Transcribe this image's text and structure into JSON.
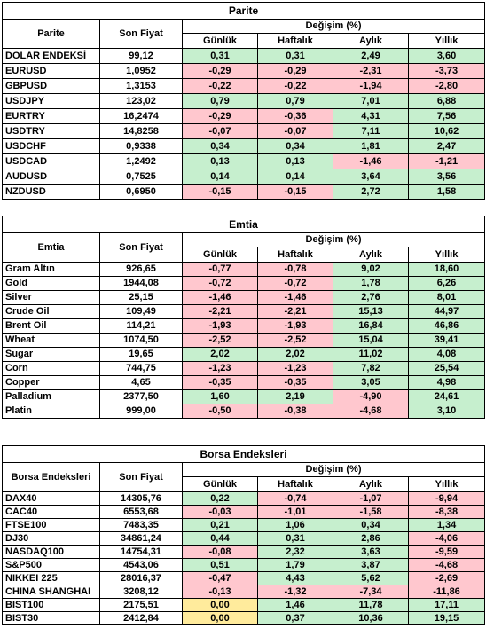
{
  "tables": [
    {
      "title": "Parite",
      "header": {
        "name": "Parite",
        "price": "Son Fiyat",
        "change": "Değişim (%)",
        "periods": [
          "Günlük",
          "Haftalık",
          "Aylık",
          "Yıllık"
        ]
      },
      "rows": [
        [
          "DOLAR ENDEKSİ",
          "99,12",
          "0,31",
          "0,31",
          "2,49",
          "3,60"
        ],
        [
          "EURUSD",
          "1,0952",
          "-0,29",
          "-0,29",
          "-2,31",
          "-3,73"
        ],
        [
          "GBPUSD",
          "1,3153",
          "-0,22",
          "-0,22",
          "-1,94",
          "-2,80"
        ],
        [
          "USDJPY",
          "123,02",
          "0,79",
          "0,79",
          "7,01",
          "6,88"
        ],
        [
          "EURTRY",
          "16,2474",
          "-0,29",
          "-0,36",
          "4,31",
          "7,56"
        ],
        [
          "USDTRY",
          "14,8258",
          "-0,07",
          "-0,07",
          "7,11",
          "10,62"
        ],
        [
          "USDCHF",
          "0,9338",
          "0,34",
          "0,34",
          "1,81",
          "2,47"
        ],
        [
          "USDCAD",
          "1,2492",
          "0,13",
          "0,13",
          "-1,46",
          "-1,21"
        ],
        [
          "AUDUSD",
          "0,7525",
          "0,14",
          "0,14",
          "3,64",
          "3,56"
        ],
        [
          "NZDUSD",
          "0,6950",
          "-0,15",
          "-0,15",
          "2,72",
          "1,58"
        ]
      ]
    },
    {
      "title": "Emtia",
      "header": {
        "name": "Emtia",
        "price": "Son Fiyat",
        "change": "Değişim (%)",
        "periods": [
          "Günlük",
          "Haftalık",
          "Aylık",
          "Yıllık"
        ]
      },
      "rows": [
        [
          "Gram Altın",
          "926,65",
          "-0,77",
          "-0,78",
          "9,02",
          "18,60"
        ],
        [
          "Gold",
          "1944,08",
          "-0,72",
          "-0,72",
          "1,78",
          "6,26"
        ],
        [
          "Silver",
          "25,15",
          "-1,46",
          "-1,46",
          "2,76",
          "8,01"
        ],
        [
          "Crude Oil",
          "109,49",
          "-2,21",
          "-2,21",
          "15,13",
          "44,97"
        ],
        [
          "Brent Oil",
          "114,21",
          "-1,93",
          "-1,93",
          "16,84",
          "46,86"
        ],
        [
          "Wheat",
          "1074,50",
          "-2,52",
          "-2,52",
          "15,04",
          "39,41"
        ],
        [
          "Sugar",
          "19,65",
          "2,02",
          "2,02",
          "11,02",
          "4,08"
        ],
        [
          "Corn",
          "744,75",
          "-1,23",
          "-1,23",
          "7,82",
          "25,54"
        ],
        [
          "Copper",
          "4,65",
          "-0,35",
          "-0,35",
          "3,05",
          "4,98"
        ],
        [
          "Palladium",
          "2377,50",
          "1,60",
          "2,19",
          "-4,90",
          "24,61"
        ],
        [
          "Platin",
          "999,00",
          "-0,50",
          "-0,38",
          "-4,68",
          "3,10"
        ]
      ]
    },
    {
      "title": "Borsa Endeksleri",
      "header": {
        "name": "Borsa Endeksleri",
        "price": "Son Fiyat",
        "change": "Değişim (%)",
        "periods": [
          "Günlük",
          "Haftalık",
          "Aylık",
          "Yıllık"
        ]
      },
      "rows": [
        [
          "DAX40",
          "14305,76",
          "0,22",
          "-0,74",
          "-1,07",
          "-9,94"
        ],
        [
          "CAC40",
          "6553,68",
          "-0,03",
          "-1,01",
          "-1,58",
          "-8,38"
        ],
        [
          "FTSE100",
          "7483,35",
          "0,21",
          "1,06",
          "0,34",
          "1,34"
        ],
        [
          "DJ30",
          "34861,24",
          "0,44",
          "0,31",
          "2,86",
          "-4,06"
        ],
        [
          "NASDAQ100",
          "14754,31",
          "-0,08",
          "2,32",
          "3,63",
          "-9,59"
        ],
        [
          "S&P500",
          "4543,06",
          "0,51",
          "1,79",
          "3,87",
          "-4,68"
        ],
        [
          "NIKKEI 225",
          "28016,37",
          "-0,47",
          "4,43",
          "5,62",
          "-2,69"
        ],
        [
          "CHINA SHANGHAI",
          "3208,12",
          "-0,13",
          "-1,32",
          "-7,34",
          "-11,86"
        ],
        [
          "BIST100",
          "2175,51",
          "0,00",
          "1,46",
          "11,78",
          "17,11"
        ],
        [
          "BIST30",
          "2412,84",
          "0,00",
          "0,37",
          "10,36",
          "19,15"
        ]
      ]
    }
  ]
}
